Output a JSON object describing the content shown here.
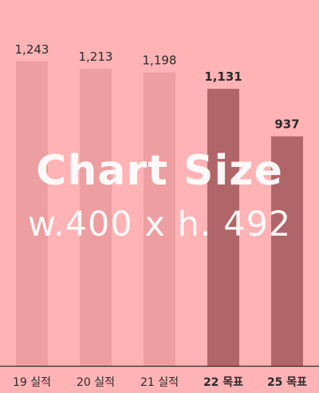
{
  "chart_data": {
    "type": "bar",
    "categories": [
      "19 실적",
      "20 실적",
      "21 실적",
      "22 목표",
      "25 목표"
    ],
    "values": [
      1243,
      1213,
      1198,
      1131,
      937
    ],
    "value_labels": [
      "1,243",
      "1,213",
      "1,198",
      "1,131",
      "937"
    ],
    "highlighted": [
      false,
      false,
      false,
      true,
      true
    ],
    "ylim": [
      0,
      1350
    ],
    "colors": {
      "background": "#ffb3b5",
      "bar": "#ec9ea0",
      "bar_highlight": "#b06669",
      "text": "#2b2b2b",
      "axis": "#3a2a2a"
    },
    "grid": false,
    "legend": "none"
  },
  "overlay": {
    "line1": "Chart Size",
    "line2": "w.400 x h. 492"
  }
}
